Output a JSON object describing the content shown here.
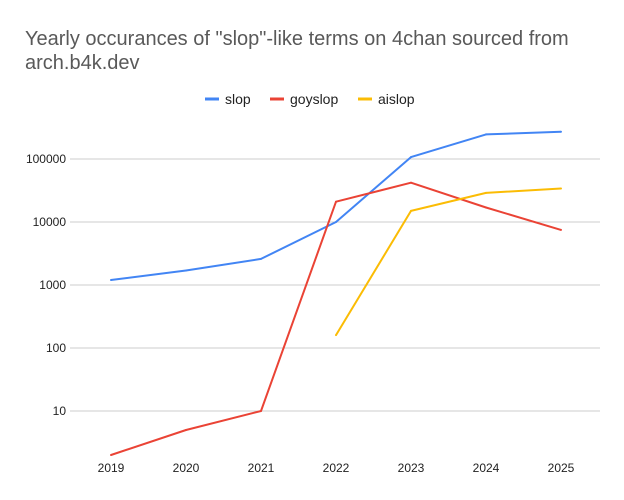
{
  "chart_data": {
    "type": "line",
    "title_lines": [
      "Yearly occurances of \"slop\"-like terms on 4chan sourced from",
      "arch.b4k.dev"
    ],
    "xlabel": "",
    "ylabel": "",
    "y_scale": "log",
    "ylim": [
      1.5,
      400000
    ],
    "y_ticks": [
      10,
      100,
      1000,
      10000,
      100000
    ],
    "y_tick_labels": [
      "10",
      "100",
      "1000",
      "10000",
      "100000"
    ],
    "categories": [
      "2019",
      "2020",
      "2021",
      "2022",
      "2023",
      "2024",
      "2025"
    ],
    "legend_position": "top",
    "grid": true,
    "series": [
      {
        "name": "slop",
        "color": "#4285f4",
        "values": [
          1200,
          1700,
          2600,
          10000,
          107000,
          246000,
          270000
        ]
      },
      {
        "name": "goyslop",
        "color": "#ea4335",
        "values": [
          2,
          5,
          10,
          21000,
          42000,
          17000,
          7500
        ]
      },
      {
        "name": "aislop",
        "color": "#fbbc04",
        "values": [
          null,
          null,
          null,
          160,
          15000,
          29000,
          34000
        ]
      }
    ]
  }
}
